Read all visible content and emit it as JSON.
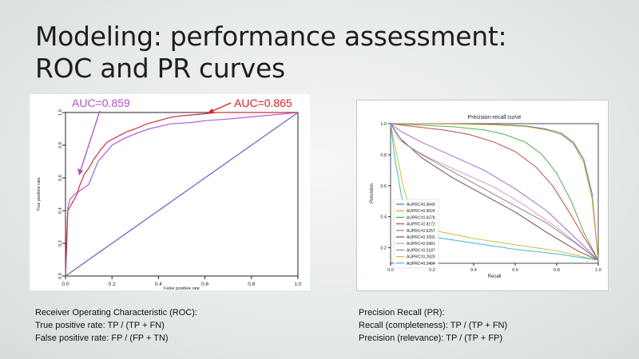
{
  "slide": {
    "title_line1": "Modeling: performance assessment:",
    "title_line2": "ROC and PR curves",
    "roc_caption": [
      "Receiver Operating Characteristic (ROC):",
      "True positive rate: TP / (TP + FN)",
      "False positive rate: FP / (FP + TN)"
    ],
    "pr_caption": [
      "Precision Recall (PR):",
      "Recall (completeness): TP / (TP + FN)",
      "Precision (relevance): TP / (TP + FP)"
    ]
  },
  "chart_data": [
    {
      "type": "line",
      "xlabel": "False positive rate",
      "ylabel": "True positive rate",
      "xlim": [
        0,
        1
      ],
      "ylim": [
        0,
        1
      ],
      "xticks": [
        "0.0",
        "0.2",
        "0.4",
        "0.6",
        "0.8",
        "1.0"
      ],
      "yticks": [
        "0.0",
        "0.2",
        "0.4",
        "0.6",
        "0.8",
        "1.0"
      ],
      "annotations": [
        {
          "text": "AUC=0.859",
          "color": "#b04fd0"
        },
        {
          "text": "AUC=0.865",
          "color": "#d8202a"
        }
      ],
      "series": [
        {
          "color": "#b05ad6",
          "points": [
            [
              0,
              0
            ],
            [
              0.005,
              0.18
            ],
            [
              0.01,
              0.42
            ],
            [
              0.02,
              0.47
            ],
            [
              0.04,
              0.5
            ],
            [
              0.07,
              0.53
            ],
            [
              0.1,
              0.56
            ],
            [
              0.12,
              0.63
            ],
            [
              0.14,
              0.7
            ],
            [
              0.17,
              0.75
            ],
            [
              0.2,
              0.8
            ],
            [
              0.25,
              0.84
            ],
            [
              0.3,
              0.87
            ],
            [
              0.36,
              0.9
            ],
            [
              0.45,
              0.93
            ],
            [
              0.55,
              0.94
            ],
            [
              0.6,
              0.95
            ],
            [
              0.7,
              0.96
            ],
            [
              0.85,
              0.98
            ],
            [
              1,
              1
            ]
          ]
        },
        {
          "color": "#c9303a",
          "points": [
            [
              0,
              0
            ],
            [
              0.005,
              0.25
            ],
            [
              0.01,
              0.4
            ],
            [
              0.03,
              0.45
            ],
            [
              0.05,
              0.5
            ],
            [
              0.06,
              0.55
            ],
            [
              0.08,
              0.62
            ],
            [
              0.1,
              0.66
            ],
            [
              0.12,
              0.71
            ],
            [
              0.15,
              0.77
            ],
            [
              0.18,
              0.82
            ],
            [
              0.22,
              0.85
            ],
            [
              0.26,
              0.88
            ],
            [
              0.3,
              0.9
            ],
            [
              0.35,
              0.93
            ],
            [
              0.4,
              0.95
            ],
            [
              0.45,
              0.97
            ],
            [
              0.5,
              0.98
            ],
            [
              0.58,
              0.99
            ],
            [
              0.65,
              1
            ],
            [
              1,
              1
            ]
          ]
        },
        {
          "color": "#6a6ad0",
          "points": [
            [
              0,
              0
            ],
            [
              1,
              1
            ]
          ]
        }
      ]
    },
    {
      "type": "line",
      "title": "Precision-recall curve",
      "xlabel": "Recall",
      "ylabel": "Precision",
      "xlim": [
        0,
        1
      ],
      "ylim": [
        0.1,
        1
      ],
      "xticks": [
        "0.0",
        "0.2",
        "0.4",
        "0.6",
        "0.8",
        "1.0"
      ],
      "yticks": [
        "0.2",
        "0.4",
        "0.6",
        "0.8",
        "1.0"
      ],
      "legend": "lower-left",
      "series": [
        {
          "name": "AUPRC=0.9640",
          "color": "#4a6fc9",
          "points": [
            [
              0,
              1
            ],
            [
              0.3,
              0.999
            ],
            [
              0.5,
              0.995
            ],
            [
              0.65,
              0.985
            ],
            [
              0.75,
              0.965
            ],
            [
              0.82,
              0.94
            ],
            [
              0.88,
              0.88
            ],
            [
              0.93,
              0.77
            ],
            [
              0.97,
              0.55
            ],
            [
              1,
              0.12
            ]
          ]
        },
        {
          "name": "AUPRC=0.9624",
          "color": "#d9a020",
          "points": [
            [
              0,
              1
            ],
            [
              0.3,
              0.998
            ],
            [
              0.5,
              0.993
            ],
            [
              0.65,
              0.982
            ],
            [
              0.75,
              0.96
            ],
            [
              0.82,
              0.93
            ],
            [
              0.88,
              0.87
            ],
            [
              0.93,
              0.75
            ],
            [
              0.97,
              0.52
            ],
            [
              1,
              0.12
            ]
          ]
        },
        {
          "name": "AUPRC=0.8378",
          "color": "#5aa85a",
          "points": [
            [
              0,
              1
            ],
            [
              0.15,
              0.99
            ],
            [
              0.3,
              0.98
            ],
            [
              0.45,
              0.96
            ],
            [
              0.55,
              0.93
            ],
            [
              0.65,
              0.88
            ],
            [
              0.73,
              0.8
            ],
            [
              0.8,
              0.68
            ],
            [
              0.87,
              0.5
            ],
            [
              0.93,
              0.3
            ],
            [
              1,
              0.12
            ]
          ]
        },
        {
          "name": "AUPRC=0.8172",
          "color": "#c04a4a",
          "points": [
            [
              0,
              1
            ],
            [
              0.12,
              0.98
            ],
            [
              0.25,
              0.96
            ],
            [
              0.38,
              0.93
            ],
            [
              0.5,
              0.88
            ],
            [
              0.6,
              0.82
            ],
            [
              0.7,
              0.72
            ],
            [
              0.78,
              0.6
            ],
            [
              0.86,
              0.43
            ],
            [
              0.93,
              0.27
            ],
            [
              1,
              0.12
            ]
          ]
        },
        {
          "name": "AUPRC=0.6257",
          "color": "#a070d0",
          "points": [
            [
              0,
              1
            ],
            [
              0.05,
              0.95
            ],
            [
              0.15,
              0.88
            ],
            [
              0.3,
              0.79
            ],
            [
              0.45,
              0.7
            ],
            [
              0.6,
              0.58
            ],
            [
              0.75,
              0.44
            ],
            [
              0.9,
              0.25
            ],
            [
              1,
              0.12
            ]
          ]
        },
        {
          "name": "AUPRC=0.3201",
          "color": "#7a5040",
          "points": [
            [
              0,
              1
            ],
            [
              0.05,
              0.9
            ],
            [
              0.15,
              0.78
            ],
            [
              0.3,
              0.65
            ],
            [
              0.45,
              0.54
            ],
            [
              0.6,
              0.43
            ],
            [
              0.75,
              0.3
            ],
            [
              0.9,
              0.18
            ],
            [
              1,
              0.12
            ]
          ]
        },
        {
          "name": "AUPRC=0.5481",
          "color": "#e090c8",
          "points": [
            [
              0,
              1
            ],
            [
              0.04,
              0.9
            ],
            [
              0.1,
              0.84
            ],
            [
              0.2,
              0.77
            ],
            [
              0.35,
              0.68
            ],
            [
              0.5,
              0.59
            ],
            [
              0.65,
              0.47
            ],
            [
              0.8,
              0.33
            ],
            [
              1,
              0.12
            ]
          ]
        },
        {
          "name": "AUPRC=0.5187",
          "color": "#888888",
          "points": [
            [
              0,
              1
            ],
            [
              0.06,
              0.88
            ],
            [
              0.15,
              0.8
            ],
            [
              0.3,
              0.69
            ],
            [
              0.45,
              0.58
            ],
            [
              0.6,
              0.47
            ],
            [
              0.75,
              0.36
            ],
            [
              0.9,
              0.22
            ],
            [
              1,
              0.12
            ]
          ]
        },
        {
          "name": "AUPRC=0.2929",
          "color": "#c8c040",
          "points": [
            [
              0,
              1
            ],
            [
              0.03,
              0.8
            ],
            [
              0.06,
              0.6
            ],
            [
              0.1,
              0.42
            ],
            [
              0.15,
              0.34
            ],
            [
              0.25,
              0.3
            ],
            [
              0.4,
              0.26
            ],
            [
              0.6,
              0.22
            ],
            [
              0.8,
              0.18
            ],
            [
              1,
              0.12
            ]
          ]
        },
        {
          "name": "AUPRC=0.2484",
          "color": "#40b8d0",
          "points": [
            [
              0,
              1
            ],
            [
              0.02,
              0.78
            ],
            [
              0.05,
              0.55
            ],
            [
              0.08,
              0.38
            ],
            [
              0.12,
              0.3
            ],
            [
              0.2,
              0.27
            ],
            [
              0.4,
              0.23
            ],
            [
              0.6,
              0.19
            ],
            [
              0.8,
              0.16
            ],
            [
              1,
              0.12
            ]
          ]
        }
      ]
    }
  ]
}
